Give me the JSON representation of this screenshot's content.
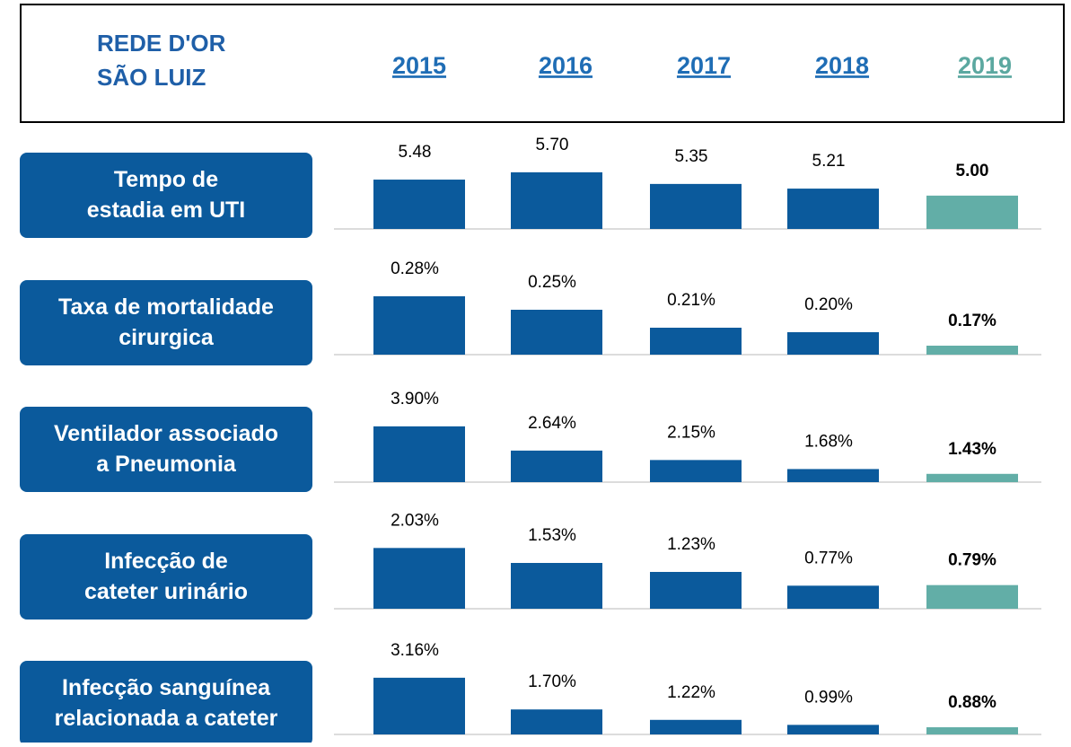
{
  "header": {
    "logo_top": "REDE D'OR",
    "logo_bottom": "SÃO LUIZ"
  },
  "categories": [
    "2015",
    "2016",
    "2017",
    "2018",
    "2019"
  ],
  "category_colors": [
    "#1f6db5",
    "#1f6db5",
    "#1f6db5",
    "#1f6db5",
    "#5ba8a0"
  ],
  "chart_data": [
    {
      "type": "bar",
      "title": "Tempo de estadia em UTI",
      "values": [
        5.48,
        5.7,
        5.35,
        5.21,
        5.0
      ],
      "value_labels": [
        "5.48",
        "5.70",
        "5.35",
        "5.21",
        "5.00"
      ],
      "colors": [
        "#0b5a9c",
        "#0b5a9c",
        "#0b5a9c",
        "#0b5a9c",
        "#62aea7"
      ],
      "ylim": [
        4.0,
        6.02
      ]
    },
    {
      "type": "bar",
      "title": "Taxa de mortalidade cirurgica",
      "values": [
        0.28,
        0.25,
        0.21,
        0.2,
        0.17
      ],
      "value_labels": [
        "0.28%",
        "0.25%",
        "0.21%",
        "0.20%",
        "0.17%"
      ],
      "colors": [
        "#0b5a9c",
        "#0b5a9c",
        "#0b5a9c",
        "#0b5a9c",
        "#62aea7"
      ],
      "ylim": [
        0.15,
        0.3
      ]
    },
    {
      "type": "bar",
      "title": "Ventilador associado a Pneumonia",
      "values": [
        3.9,
        2.64,
        2.15,
        1.68,
        1.43
      ],
      "value_labels": [
        "3.90%",
        "2.64%",
        "2.15%",
        "1.68%",
        "1.43%"
      ],
      "colors": [
        "#0b5a9c",
        "#0b5a9c",
        "#0b5a9c",
        "#0b5a9c",
        "#62aea7"
      ],
      "ylim": [
        1.0,
        4.5
      ]
    },
    {
      "type": "bar",
      "title": "Infecção de cateter urinário",
      "values": [
        2.03,
        1.53,
        1.23,
        0.77,
        0.79
      ],
      "value_labels": [
        "2.03%",
        "1.53%",
        "1.23%",
        "0.77%",
        "0.79%"
      ],
      "colors": [
        "#0b5a9c",
        "#0b5a9c",
        "#0b5a9c",
        "#0b5a9c",
        "#62aea7"
      ],
      "ylim": [
        0,
        2.25
      ]
    },
    {
      "type": "bar",
      "title": "Infecção sanguínea relacionada a cateter",
      "values": [
        3.16,
        1.7,
        1.22,
        0.99,
        0.88
      ],
      "value_labels": [
        "3.16%",
        "1.70%",
        "1.22%",
        "0.99%",
        "0.88%"
      ],
      "colors": [
        "#0b5a9c",
        "#0b5a9c",
        "#0b5a9c",
        "#0b5a9c",
        "#62aea7"
      ],
      "ylim": [
        0.55,
        3.65
      ]
    }
  ]
}
